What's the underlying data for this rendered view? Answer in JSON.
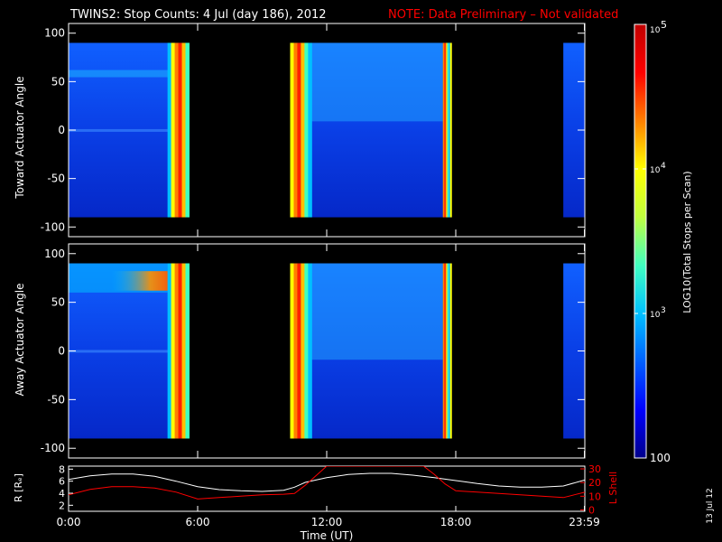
{
  "title": {
    "main": "TWINS2: Stop Counts:  4 Jul (day 186), 2012",
    "note": "NOTE: Data Preliminary – Not validated",
    "note_color": "#ff0000"
  },
  "panels": [
    {
      "id": "toward",
      "ylabel": "Toward Actuator Angle",
      "ylim": [
        -110,
        110
      ],
      "y_ticks": [
        "100",
        "50",
        "0",
        "-50",
        "-100"
      ],
      "y_tick_values": [
        100,
        50,
        0,
        -50,
        -100
      ],
      "data_range": [
        -90,
        90
      ],
      "coverage_hours": [
        [
          0.0,
          5.6
        ],
        [
          10.3,
          17.8
        ],
        [
          23.0,
          24.0
        ]
      ],
      "bright_bands_hours": [
        [
          4.6,
          5.6
        ],
        [
          10.3,
          11.3
        ],
        [
          17.4,
          17.8
        ]
      ],
      "features": "mostly low counts (~10^2.3) with high-count streaks near 5h, 10.5–11h and 17.5h; slightly elevated band near +60 deg"
    },
    {
      "id": "away",
      "ylabel": "Away Actuator Angle",
      "ylim": [
        -110,
        110
      ],
      "y_ticks": [
        "100",
        "50",
        "0",
        "-50",
        "-100"
      ],
      "y_tick_values": [
        100,
        50,
        0,
        -50,
        -100
      ],
      "data_range": [
        -90,
        90
      ],
      "coverage_hours": [
        [
          0.0,
          5.6
        ],
        [
          10.3,
          17.8
        ],
        [
          23.0,
          24.0
        ]
      ],
      "bright_bands_hours": [
        [
          4.6,
          5.6
        ],
        [
          10.3,
          11.3
        ],
        [
          17.4,
          17.8
        ]
      ],
      "features": "high counts concentrated near +70 to +90 deg around 3–5.5h; broad elevated region 11–14h above +30 deg"
    }
  ],
  "x_axis": {
    "label": "Time (UT)",
    "ticks": [
      "0:00",
      "6:00",
      "12:00",
      "18:00",
      "23:59"
    ],
    "tick_hours": [
      0,
      6,
      12,
      18,
      23.98
    ],
    "range_hours": [
      0,
      24
    ]
  },
  "colorbar": {
    "label": "LOG10(Total Stops per Scan)",
    "scale": "log",
    "range": [
      100,
      100000
    ],
    "tick_labels": {
      "low": "100",
      "mid": "10",
      "mid_exp": "3",
      "high": "10",
      "high_exp": "4",
      "top": "10",
      "top_exp": "5"
    },
    "tick_values": [
      100,
      1000,
      10000,
      100000
    ],
    "colors": [
      "#00008b",
      "#0000ff",
      "#0060ff",
      "#00c0ff",
      "#40ffc0",
      "#c0ff40",
      "#ffff00",
      "#ff8000",
      "#ff0000",
      "#c00000"
    ]
  },
  "orbit": {
    "left_label": "R [Rₑ]",
    "right_label": "L Shell",
    "left_ticks": [
      "8",
      "6",
      "4",
      "2"
    ],
    "left_tick_values": [
      8,
      6,
      4,
      2
    ],
    "right_ticks": [
      "30",
      "20",
      "10",
      "0"
    ],
    "right_tick_values": [
      30,
      20,
      10,
      0
    ],
    "left_ylim": [
      1,
      8.5
    ],
    "right_ylim": [
      -1,
      32
    ],
    "r_color": "#ffffff",
    "l_color": "#ff0000",
    "r_series": {
      "name": "R",
      "hours": [
        0,
        1,
        2,
        3,
        4,
        5,
        6,
        7,
        8,
        9,
        10,
        10.5,
        11,
        12,
        13,
        14,
        15,
        16,
        17,
        18,
        19,
        20,
        21,
        22,
        23,
        24
      ],
      "values": [
        6.3,
        6.9,
        7.2,
        7.2,
        6.8,
        6.0,
        5.1,
        4.6,
        4.4,
        4.3,
        4.5,
        5.0,
        5.8,
        6.6,
        7.1,
        7.3,
        7.3,
        7.0,
        6.6,
        6.1,
        5.6,
        5.2,
        5.0,
        5.0,
        5.2,
        6.2
      ]
    },
    "l_series": {
      "name": "L Shell",
      "hours": [
        0,
        1,
        2,
        3,
        4,
        5,
        6,
        7,
        8,
        9,
        10,
        10.5,
        11,
        11.5,
        12,
        16.5,
        17,
        17.5,
        18,
        19,
        20,
        21,
        22,
        23,
        23.5,
        24
      ],
      "values": [
        11,
        15,
        17,
        17,
        16,
        13,
        8,
        9,
        10,
        11,
        11.5,
        12,
        18,
        25,
        32,
        32,
        26,
        19,
        14,
        13,
        12,
        11,
        10,
        9,
        11,
        13
      ]
    }
  },
  "footer_date": "13 Jul 12"
}
